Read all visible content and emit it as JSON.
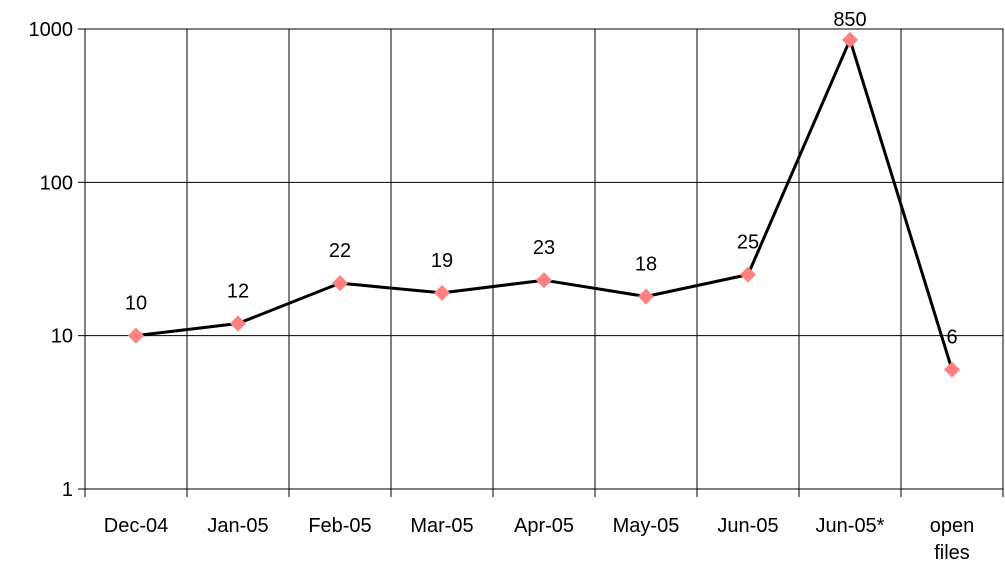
{
  "chart_data": {
    "type": "line",
    "categories": [
      "Dec-04",
      "Jan-05",
      "Feb-05",
      "Mar-05",
      "Apr-05",
      "May-05",
      "Jun-05",
      "Jun-05*",
      "open files"
    ],
    "values": [
      10,
      12,
      22,
      19,
      23,
      18,
      25,
      850,
      6
    ],
    "line_color": "#000000",
    "marker_color": "#ff8080",
    "log_scale": true,
    "ylim": [
      1,
      1000
    ],
    "yticks": [
      1,
      10,
      100,
      1000
    ],
    "grid": true,
    "data_labels": true
  }
}
